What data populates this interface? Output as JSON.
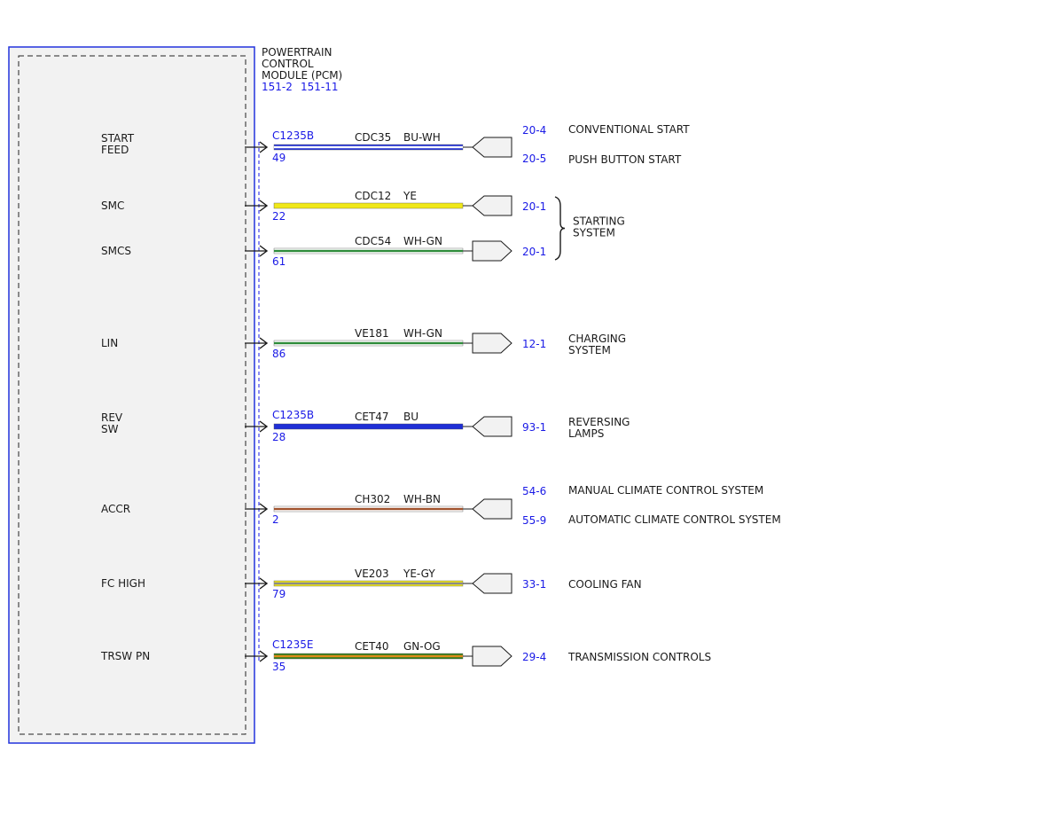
{
  "module": {
    "title_lines": [
      "POWERTRAIN",
      "CONTROL",
      "MODULE (PCM)"
    ],
    "refs": [
      "151-2",
      "151-11"
    ],
    "colors": {
      "border": "#2233dd",
      "fill": "#f2f2f2",
      "link": "#1a1ae6"
    }
  },
  "circuits": [
    {
      "id": "start-feed",
      "signal_lines": [
        "START",
        "FEED"
      ],
      "connector": "C1235B",
      "pin": "49",
      "circuit": "CDC35",
      "wire_color": "BU-WH",
      "wire_colors": [
        "#1f2fd6",
        "#ffffff"
      ],
      "direction": "in",
      "destinations": [
        {
          "ref": "20-4",
          "label_lines": [
            "CONVENTIONAL START"
          ]
        },
        {
          "ref": "20-5",
          "label_lines": [
            "PUSH BUTTON START"
          ]
        }
      ]
    },
    {
      "id": "smc",
      "signal_lines": [
        "SMC"
      ],
      "connector": "",
      "pin": "22",
      "circuit": "CDC12",
      "wire_color": "YE",
      "wire_colors": [
        "#f0e818"
      ],
      "direction": "in",
      "destinations": [
        {
          "ref": "20-1",
          "label_lines": []
        }
      ]
    },
    {
      "id": "smcs",
      "signal_lines": [
        "SMCS"
      ],
      "connector": "",
      "pin": "61",
      "circuit": "CDC54",
      "wire_color": "WH-GN",
      "wire_colors": [
        "#ffffff",
        "#2e8b3a"
      ],
      "direction": "out",
      "destinations": [
        {
          "ref": "20-1",
          "label_lines": []
        }
      ]
    },
    {
      "id": "lin",
      "signal_lines": [
        "LIN"
      ],
      "connector": "",
      "pin": "86",
      "circuit": "VE181",
      "wire_color": "WH-GN",
      "wire_colors": [
        "#ffffff",
        "#2e8b3a"
      ],
      "direction": "out",
      "destinations": [
        {
          "ref": "12-1",
          "label_lines": [
            "CHARGING",
            "SYSTEM"
          ]
        }
      ]
    },
    {
      "id": "rev-sw",
      "signal_lines": [
        "REV",
        "SW"
      ],
      "connector": "C1235B",
      "pin": "28",
      "circuit": "CET47",
      "wire_color": "BU",
      "wire_colors": [
        "#1f2fd6"
      ],
      "direction": "in",
      "destinations": [
        {
          "ref": "93-1",
          "label_lines": [
            "REVERSING",
            "LAMPS"
          ]
        }
      ]
    },
    {
      "id": "accr",
      "signal_lines": [
        "ACCR"
      ],
      "connector": "",
      "pin": "2",
      "circuit": "CH302",
      "wire_color": "WH-BN",
      "wire_colors": [
        "#ffffff",
        "#a0522d"
      ],
      "direction": "in",
      "destinations": [
        {
          "ref": "54-6",
          "label_lines": [
            "MANUAL CLIMATE CONTROL SYSTEM"
          ]
        },
        {
          "ref": "55-9",
          "label_lines": [
            "AUTOMATIC CLIMATE CONTROL SYSTEM"
          ]
        }
      ]
    },
    {
      "id": "fc-high",
      "signal_lines": [
        "FC HIGH"
      ],
      "connector": "",
      "pin": "79",
      "circuit": "VE203",
      "wire_color": "YE-GY",
      "wire_colors": [
        "#f0e818",
        "#8a8a8a"
      ],
      "direction": "in",
      "destinations": [
        {
          "ref": "33-1",
          "label_lines": [
            "COOLING FAN"
          ]
        }
      ]
    },
    {
      "id": "trsw-pn",
      "signal_lines": [
        "TRSW PN"
      ],
      "connector": "C1235E",
      "pin": "35",
      "circuit": "CET40",
      "wire_color": "GN-OG",
      "wire_colors": [
        "#2e7d1f",
        "#e08a1a"
      ],
      "direction": "out",
      "destinations": [
        {
          "ref": "29-4",
          "label_lines": [
            "TRANSMISSION CONTROLS"
          ]
        }
      ]
    }
  ],
  "groups": [
    {
      "id": "starting-system",
      "label_lines": [
        "STARTING",
        "SYSTEM"
      ],
      "members": [
        "smc",
        "smcs"
      ]
    }
  ]
}
